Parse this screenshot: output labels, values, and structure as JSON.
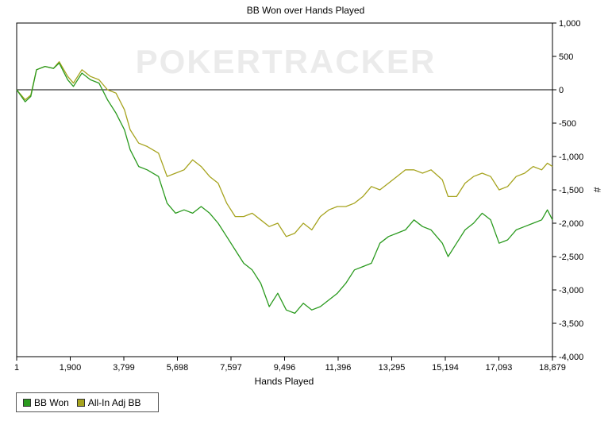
{
  "chart_data": {
    "type": "line",
    "title": "BB Won over Hands Played",
    "xlabel": "Hands Played",
    "ylabel": "#",
    "watermark": "POKERTRACKER",
    "x_ticks": [
      "1",
      "1,900",
      "3,799",
      "5,698",
      "7,597",
      "9,496",
      "11,396",
      "13,295",
      "15,194",
      "17,093",
      "18,879"
    ],
    "y_ticks": [
      "1,000",
      "500",
      "0",
      "-500",
      "-1,000",
      "-1,500",
      "-2,000",
      "-2,500",
      "-3,000",
      "-3,500",
      "-4,000"
    ],
    "xlim": [
      1,
      18879
    ],
    "ylim": [
      -4000,
      1000
    ],
    "grid": false,
    "legend_position": "bottom-left",
    "series": [
      {
        "name": "BB Won",
        "color": "#2a9a1e",
        "points": [
          [
            1,
            0
          ],
          [
            300,
            -180
          ],
          [
            500,
            -100
          ],
          [
            700,
            300
          ],
          [
            1000,
            350
          ],
          [
            1300,
            320
          ],
          [
            1500,
            400
          ],
          [
            1800,
            150
          ],
          [
            2000,
            50
          ],
          [
            2300,
            250
          ],
          [
            2600,
            150
          ],
          [
            2900,
            100
          ],
          [
            3200,
            -150
          ],
          [
            3500,
            -350
          ],
          [
            3800,
            -600
          ],
          [
            4000,
            -900
          ],
          [
            4300,
            -1150
          ],
          [
            4600,
            -1200
          ],
          [
            5000,
            -1300
          ],
          [
            5300,
            -1700
          ],
          [
            5600,
            -1850
          ],
          [
            5900,
            -1800
          ],
          [
            6200,
            -1850
          ],
          [
            6500,
            -1750
          ],
          [
            6800,
            -1850
          ],
          [
            7100,
            -2000
          ],
          [
            7400,
            -2200
          ],
          [
            7700,
            -2400
          ],
          [
            8000,
            -2600
          ],
          [
            8300,
            -2700
          ],
          [
            8600,
            -2900
          ],
          [
            8900,
            -3250
          ],
          [
            9200,
            -3050
          ],
          [
            9500,
            -3300
          ],
          [
            9800,
            -3350
          ],
          [
            10100,
            -3200
          ],
          [
            10400,
            -3300
          ],
          [
            10700,
            -3250
          ],
          [
            11000,
            -3150
          ],
          [
            11300,
            -3050
          ],
          [
            11600,
            -2900
          ],
          [
            11900,
            -2700
          ],
          [
            12200,
            -2650
          ],
          [
            12500,
            -2600
          ],
          [
            12800,
            -2300
          ],
          [
            13100,
            -2200
          ],
          [
            13400,
            -2150
          ],
          [
            13700,
            -2100
          ],
          [
            14000,
            -1950
          ],
          [
            14300,
            -2050
          ],
          [
            14600,
            -2100
          ],
          [
            15000,
            -2300
          ],
          [
            15200,
            -2500
          ],
          [
            15500,
            -2300
          ],
          [
            15800,
            -2100
          ],
          [
            16100,
            -2000
          ],
          [
            16400,
            -1850
          ],
          [
            16700,
            -1950
          ],
          [
            17000,
            -2300
          ],
          [
            17300,
            -2250
          ],
          [
            17600,
            -2100
          ],
          [
            17900,
            -2050
          ],
          [
            18200,
            -2000
          ],
          [
            18500,
            -1950
          ],
          [
            18700,
            -1800
          ],
          [
            18879,
            -1950
          ]
        ]
      },
      {
        "name": "All-In Adj BB",
        "color": "#a6a31e",
        "points": [
          [
            1,
            0
          ],
          [
            300,
            -150
          ],
          [
            500,
            -80
          ],
          [
            700,
            300
          ],
          [
            1000,
            350
          ],
          [
            1300,
            320
          ],
          [
            1500,
            420
          ],
          [
            1800,
            200
          ],
          [
            2000,
            100
          ],
          [
            2300,
            300
          ],
          [
            2600,
            200
          ],
          [
            2900,
            150
          ],
          [
            3200,
            0
          ],
          [
            3500,
            -50
          ],
          [
            3800,
            -300
          ],
          [
            4000,
            -600
          ],
          [
            4300,
            -800
          ],
          [
            4600,
            -850
          ],
          [
            5000,
            -950
          ],
          [
            5300,
            -1300
          ],
          [
            5600,
            -1250
          ],
          [
            5900,
            -1200
          ],
          [
            6200,
            -1050
          ],
          [
            6500,
            -1150
          ],
          [
            6800,
            -1300
          ],
          [
            7100,
            -1400
          ],
          [
            7400,
            -1700
          ],
          [
            7700,
            -1900
          ],
          [
            8000,
            -1900
          ],
          [
            8300,
            -1850
          ],
          [
            8600,
            -1950
          ],
          [
            8900,
            -2050
          ],
          [
            9200,
            -2000
          ],
          [
            9500,
            -2200
          ],
          [
            9800,
            -2150
          ],
          [
            10100,
            -2000
          ],
          [
            10400,
            -2100
          ],
          [
            10700,
            -1900
          ],
          [
            11000,
            -1800
          ],
          [
            11300,
            -1750
          ],
          [
            11600,
            -1750
          ],
          [
            11900,
            -1700
          ],
          [
            12200,
            -1600
          ],
          [
            12500,
            -1450
          ],
          [
            12800,
            -1500
          ],
          [
            13100,
            -1400
          ],
          [
            13400,
            -1300
          ],
          [
            13700,
            -1200
          ],
          [
            14000,
            -1200
          ],
          [
            14300,
            -1250
          ],
          [
            14600,
            -1200
          ],
          [
            15000,
            -1350
          ],
          [
            15200,
            -1600
          ],
          [
            15500,
            -1600
          ],
          [
            15800,
            -1400
          ],
          [
            16100,
            -1300
          ],
          [
            16400,
            -1250
          ],
          [
            16700,
            -1300
          ],
          [
            17000,
            -1500
          ],
          [
            17300,
            -1450
          ],
          [
            17600,
            -1300
          ],
          [
            17900,
            -1250
          ],
          [
            18200,
            -1150
          ],
          [
            18500,
            -1200
          ],
          [
            18700,
            -1100
          ],
          [
            18879,
            -1150
          ]
        ]
      }
    ]
  }
}
